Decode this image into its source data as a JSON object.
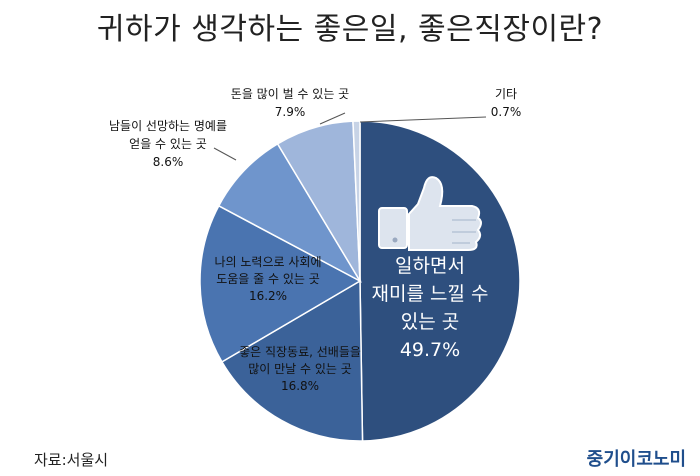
{
  "title": "귀하가 생각하는 좋은일, 좋은직장이란?",
  "source": "자료:서울시",
  "brand": "중기이코노미",
  "chart_data": {
    "type": "pie",
    "slices": [
      {
        "label_lines": [
          "일하면서",
          "재미를 느낄 수",
          "있는 곳"
        ],
        "value": 49.7,
        "value_label": "49.7%",
        "color": "#2e4f7e"
      },
      {
        "label_lines": [
          "좋은 직장동료, 선배들을",
          "많이 만날 수 있는 곳"
        ],
        "value": 16.8,
        "value_label": "16.8%",
        "color": "#3b6299"
      },
      {
        "label_lines": [
          "나의 노력으로 사회에",
          "도움을 줄 수 있는 곳"
        ],
        "value": 16.2,
        "value_label": "16.2%",
        "color": "#4a74b0"
      },
      {
        "label_lines": [
          "남들이 선망하는 명예를",
          "얻을 수 있는 곳"
        ],
        "value": 8.6,
        "value_label": "8.6%",
        "color": "#6f95cc"
      },
      {
        "label_lines": [
          "돈을 많이 벌 수 있는 곳"
        ],
        "value": 7.9,
        "value_label": "7.9%",
        "color": "#9fb6db"
      },
      {
        "label_lines": [
          "기타"
        ],
        "value": 0.7,
        "value_label": "0.7%",
        "color": "#c7d3e6"
      }
    ]
  }
}
